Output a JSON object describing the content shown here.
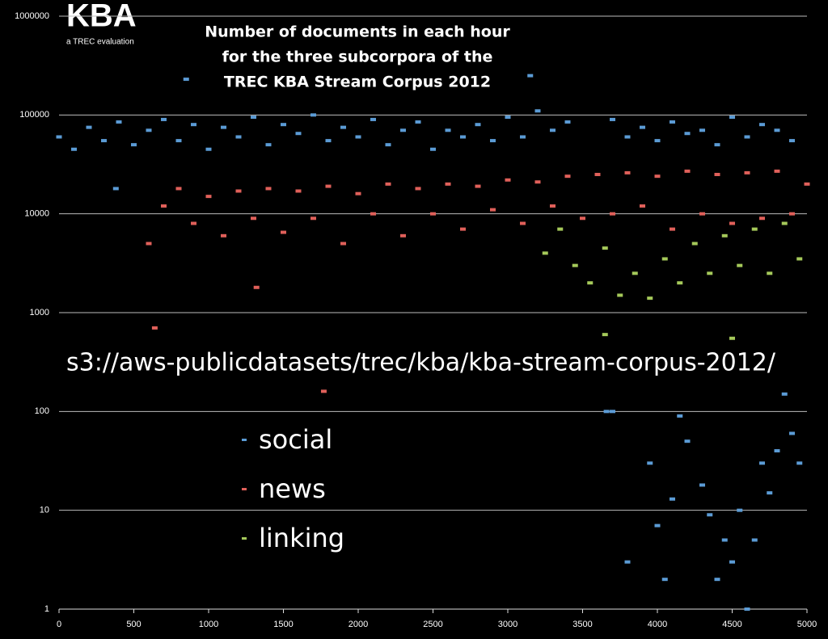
{
  "chart_data": {
    "type": "scatter",
    "logo": "KBA",
    "logo_subtitle": "a TREC evaluation",
    "title": [
      "Number of documents in each hour",
      "for the three subcorpora of the",
      "TREC KBA Stream Corpus 2012"
    ],
    "annotation": "s3://aws-publicdatasets/trec/kba/kba-stream-corpus-2012/",
    "log_y": true,
    "grid": true,
    "xlim": [
      0,
      5000
    ],
    "xticks": [
      0,
      500,
      1000,
      1500,
      2000,
      2500,
      3000,
      3500,
      4000,
      4500,
      5000
    ],
    "ylim": [
      1,
      1000000
    ],
    "yticks": [
      1,
      10,
      100,
      1000,
      10000,
      100000,
      1000000
    ],
    "series": [
      {
        "name": "social",
        "color": "#5b9bd5",
        "x": [
          0,
          100,
          200,
          300,
          400,
          500,
          600,
          700,
          800,
          900,
          1000,
          1100,
          1200,
          1300,
          1400,
          1500,
          1600,
          1700,
          1800,
          1900,
          2000,
          2100,
          2200,
          2300,
          2400,
          2500,
          2600,
          2700,
          2800,
          2900,
          3000,
          3100,
          3200,
          3300,
          3400,
          3700,
          3800,
          3900,
          4000,
          4100,
          4200,
          4300,
          4400,
          4500,
          4600,
          4700,
          4800,
          4900,
          850,
          3150,
          380,
          3660,
          3700,
          3800,
          3950,
          4000,
          4050,
          4100,
          4150,
          4200,
          4300,
          4350,
          4400,
          4450,
          4500,
          4550,
          4600,
          4650,
          4700,
          4750,
          4800,
          4850,
          4900,
          4950
        ],
        "values": [
          60000,
          45000,
          75000,
          55000,
          85000,
          50000,
          70000,
          90000,
          55000,
          80000,
          45000,
          75000,
          60000,
          95000,
          50000,
          80000,
          65000,
          100000,
          55000,
          75000,
          60000,
          90000,
          50000,
          70000,
          85000,
          45000,
          70000,
          60000,
          80000,
          55000,
          95000,
          60000,
          110000,
          70000,
          85000,
          90000,
          60000,
          75000,
          55000,
          85000,
          65000,
          70000,
          50000,
          95000,
          60000,
          80000,
          70000,
          55000,
          230000,
          250000,
          18000,
          100,
          100,
          3,
          30,
          7,
          2,
          13,
          90,
          50,
          18,
          9,
          2,
          5,
          3,
          10,
          1,
          5,
          30,
          15,
          40,
          150,
          60,
          30
        ]
      },
      {
        "name": "news",
        "color": "#e0605a",
        "x": [
          600,
          700,
          800,
          900,
          1000,
          1100,
          1200,
          1300,
          1400,
          1500,
          1600,
          1700,
          1800,
          1900,
          2000,
          2100,
          2200,
          2300,
          2400,
          2500,
          2600,
          2700,
          2800,
          2900,
          3000,
          3100,
          3200,
          3300,
          3400,
          3500,
          3600,
          3700,
          3800,
          3900,
          4000,
          4100,
          4200,
          4300,
          4400,
          4500,
          4600,
          4700,
          4800,
          4900,
          5000,
          640,
          1320,
          1770
        ],
        "values": [
          5000,
          12000,
          18000,
          8000,
          15000,
          6000,
          17000,
          9000,
          18000,
          6500,
          17000,
          9000,
          19000,
          5000,
          16000,
          10000,
          20000,
          6000,
          18000,
          10000,
          20000,
          7000,
          19000,
          11000,
          22000,
          8000,
          21000,
          12000,
          24000,
          9000,
          25000,
          10000,
          26000,
          12000,
          24000,
          7000,
          27000,
          10000,
          25000,
          8000,
          26000,
          9000,
          27000,
          10000,
          20000,
          700,
          1800,
          160
        ]
      },
      {
        "name": "linking",
        "color": "#a5c95a",
        "x": [
          3250,
          3350,
          3450,
          3550,
          3650,
          3750,
          3850,
          3950,
          4050,
          4150,
          4250,
          4350,
          4450,
          4550,
          4650,
          4750,
          4850,
          4950,
          3650,
          4500
        ],
        "values": [
          4000,
          7000,
          3000,
          2000,
          4500,
          1500,
          2500,
          1400,
          3500,
          2000,
          5000,
          2500,
          6000,
          3000,
          7000,
          2500,
          8000,
          3500,
          600,
          550
        ]
      }
    ]
  }
}
